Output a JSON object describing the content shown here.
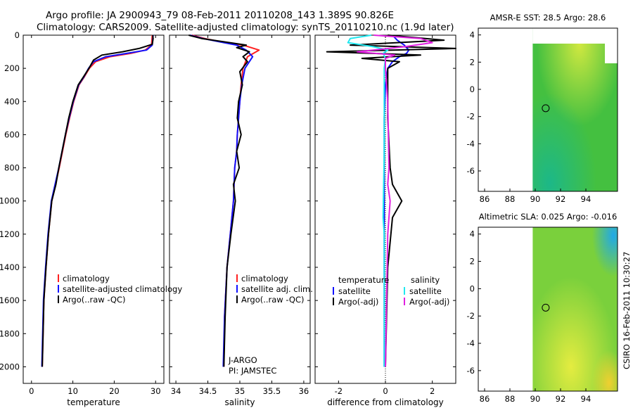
{
  "titles": {
    "line1": "Argo profile: JA 2900943_79 08-Feb-2011 20110208_143 1.389S 90.826E",
    "line2": "Climatology: CARS2009. Satellite-adjusted climatology: synTS_20110210.nc (1.9d later)"
  },
  "side_stamp": "CSIRO 16-Feb-2011 10:30:27",
  "colors": {
    "climatology": "#ff2020",
    "satellite": "#1010ff",
    "argo": "#000000",
    "satellite_salinity": "#20e8f0",
    "argo_adj_salinity": "#e020e0",
    "map_green": "#4ec43a",
    "map_yellow": "#d8e83a"
  },
  "chart_data": [
    {
      "type": "line",
      "panel": "temperature",
      "xlabel": "temperature",
      "ylabel": "",
      "xlim": [
        -2,
        32
      ],
      "ylim": [
        2100,
        0
      ],
      "xticks": [
        0,
        10,
        20,
        30
      ],
      "yticks": [
        0,
        200,
        400,
        600,
        800,
        1000,
        1200,
        1400,
        1600,
        1800,
        2000
      ],
      "legend": [
        "climatology",
        "satellite-adjusted climatology",
        "Argo(..raw -QC)"
      ],
      "series": [
        {
          "name": "climatology",
          "color": "#ff2020",
          "x": [
            29.2,
            29.0,
            27.5,
            24.0,
            19.0,
            15.5,
            14.0,
            12.8,
            11.5,
            10.2,
            9.2,
            8.3,
            7.5,
            6.7,
            5.8,
            4.9,
            4.1,
            3.5,
            3.0,
            2.6
          ],
          "y": [
            0,
            60,
            90,
            110,
            130,
            160,
            200,
            250,
            300,
            400,
            500,
            600,
            700,
            800,
            900,
            1000,
            1200,
            1400,
            1600,
            2000
          ]
        },
        {
          "name": "satellite-adjusted climatology",
          "color": "#1010ff",
          "x": [
            29.4,
            29.2,
            27.8,
            23.0,
            18.0,
            15.0,
            13.8,
            12.7,
            11.4,
            10.1,
            9.1,
            8.2,
            7.4,
            6.6,
            5.7,
            4.8,
            4.0,
            3.4,
            2.9,
            2.5
          ],
          "y": [
            0,
            60,
            90,
            110,
            130,
            160,
            200,
            250,
            300,
            400,
            500,
            600,
            700,
            800,
            900,
            1000,
            1200,
            1400,
            1600,
            2000
          ]
        },
        {
          "name": "Argo(..raw -QC)",
          "color": "#000000",
          "x": [
            29.3,
            29.4,
            29.2,
            26.0,
            22.0,
            17.0,
            15.0,
            13.9,
            12.6,
            11.3,
            10.0,
            9.0,
            8.2,
            7.4,
            6.6,
            5.9,
            4.9,
            4.1,
            3.5,
            3.0,
            2.6
          ],
          "y": [
            0,
            20,
            55,
            80,
            100,
            120,
            150,
            200,
            250,
            300,
            400,
            500,
            600,
            700,
            800,
            900,
            1000,
            1200,
            1400,
            1600,
            2000
          ]
        }
      ]
    },
    {
      "type": "line",
      "panel": "salinity",
      "xlabel": "salinity",
      "xlim": [
        33.9,
        36.1
      ],
      "ylim": [
        2100,
        0
      ],
      "xticks": [
        34,
        34.5,
        35,
        35.5,
        36
      ],
      "legend": [
        "climatology",
        "satellite adj. clim.",
        "Argo(..raw -QC)"
      ],
      "annotations": [
        "J-ARGO",
        "PI: JAMSTEC"
      ],
      "series": [
        {
          "name": "climatology",
          "color": "#ff2020",
          "x": [
            34.25,
            34.45,
            34.7,
            35.05,
            35.3,
            35.12,
            35.05,
            35.02,
            35.0,
            34.98,
            34.96,
            34.95,
            34.92,
            34.9,
            34.85,
            34.8,
            34.76,
            34.75
          ],
          "y": [
            0,
            20,
            40,
            60,
            90,
            130,
            200,
            300,
            400,
            500,
            600,
            700,
            800,
            1000,
            1200,
            1400,
            1700,
            2000
          ]
        },
        {
          "name": "satellite adj. clim.",
          "color": "#1010ff",
          "x": [
            34.22,
            34.42,
            34.68,
            34.95,
            35.1,
            35.2,
            35.08,
            35.03,
            35.0,
            34.98,
            34.96,
            34.95,
            34.92,
            34.9,
            34.85,
            34.8,
            34.76,
            34.74
          ],
          "y": [
            0,
            20,
            40,
            60,
            90,
            130,
            200,
            300,
            400,
            500,
            600,
            700,
            800,
            1000,
            1200,
            1400,
            1700,
            2000
          ]
        },
        {
          "name": "Argo(..raw -QC)",
          "color": "#000000",
          "x": [
            34.2,
            34.4,
            34.75,
            35.1,
            34.95,
            35.15,
            35.05,
            35.12,
            35.0,
            35.04,
            34.98,
            34.96,
            35.02,
            34.95,
            34.99,
            34.9,
            34.93,
            34.86,
            34.8,
            34.77,
            34.75
          ],
          "y": [
            0,
            20,
            40,
            60,
            75,
            100,
            130,
            160,
            220,
            300,
            400,
            500,
            600,
            700,
            800,
            900,
            1000,
            1200,
            1400,
            1700,
            2000
          ]
        }
      ]
    },
    {
      "type": "line",
      "panel": "difference",
      "xlabel": "difference from climatology",
      "xlim": [
        -3,
        3
      ],
      "ylim": [
        2100,
        0
      ],
      "xticks": [
        -2,
        0,
        2
      ],
      "legend_left_title": "temperature",
      "legend_left": [
        "satellite",
        "Argo(-adj)"
      ],
      "legend_right_title": "salinity",
      "legend_right": [
        "satellite",
        "Argo(-adj)"
      ],
      "series": [
        {
          "name": "temperature satellite",
          "color": "#1010ff",
          "x": [
            0.3,
            0.5,
            0.8,
            1.0,
            0.9,
            0.6,
            0.3,
            0.1,
            0.0,
            -0.05,
            -0.05,
            -0.05,
            -0.05,
            -0.05,
            -0.05
          ],
          "y": [
            0,
            30,
            60,
            90,
            110,
            130,
            160,
            200,
            300,
            500,
            800,
            1000,
            1400,
            1800,
            2000
          ]
        },
        {
          "name": "temperature Argo(-adj)",
          "color": "#000000",
          "x": [
            0.1,
            2.5,
            -1.5,
            3.0,
            -2.5,
            1.5,
            -1.0,
            0.6,
            0.1,
            0.1,
            0.1,
            0.2,
            0.3,
            0.7,
            0.3,
            0.1,
            0.0
          ],
          "y": [
            0,
            30,
            60,
            80,
            100,
            120,
            140,
            160,
            200,
            300,
            500,
            800,
            900,
            1000,
            1100,
            1400,
            2000
          ]
        },
        {
          "name": "salinity satellite",
          "color": "#20e8f0",
          "x": [
            -0.6,
            -1.5,
            -1.6,
            -0.5,
            0.1,
            -0.1,
            0.0,
            -0.05,
            -0.05,
            -0.05,
            -0.1,
            -0.05,
            -0.05,
            -0.05
          ],
          "y": [
            0,
            20,
            45,
            70,
            90,
            110,
            140,
            200,
            400,
            700,
            1100,
            1200,
            1600,
            2000
          ]
        },
        {
          "name": "salinity Argo(-adj)",
          "color": "#e020e0",
          "x": [
            -0.5,
            1.5,
            2.0,
            0.8,
            -1.2,
            0.4,
            0.0,
            0.0,
            0.1,
            0.15,
            0.1,
            0.2,
            0.1,
            0.0
          ],
          "y": [
            0,
            20,
            45,
            70,
            100,
            120,
            140,
            200,
            400,
            800,
            900,
            1000,
            1200,
            2000
          ]
        }
      ]
    },
    {
      "type": "heatmap",
      "panel": "map-sst",
      "title": "AMSR-E SST: 28.5  Argo: 28.6",
      "xlim": [
        85.5,
        96.5
      ],
      "ylim": [
        -7.5,
        4.5
      ],
      "xticks": [
        86,
        88,
        90,
        92,
        94
      ],
      "yticks": [
        4,
        2,
        0,
        -2,
        -4,
        -6
      ],
      "data_west_edge_lon": 89.8,
      "argo_position": {
        "lon": 90.826,
        "lat": -1.389
      }
    },
    {
      "type": "heatmap",
      "panel": "map-sla",
      "title": "Altimetric SLA: 0.025  Argo: -0.016",
      "xlim": [
        85.5,
        96.5
      ],
      "ylim": [
        -7.5,
        4.5
      ],
      "xticks": [
        86,
        88,
        90,
        92,
        94
      ],
      "yticks": [
        4,
        2,
        0,
        -2,
        -4,
        -6
      ],
      "data_west_edge_lon": 89.8,
      "argo_position": {
        "lon": 90.826,
        "lat": -1.389
      }
    }
  ]
}
